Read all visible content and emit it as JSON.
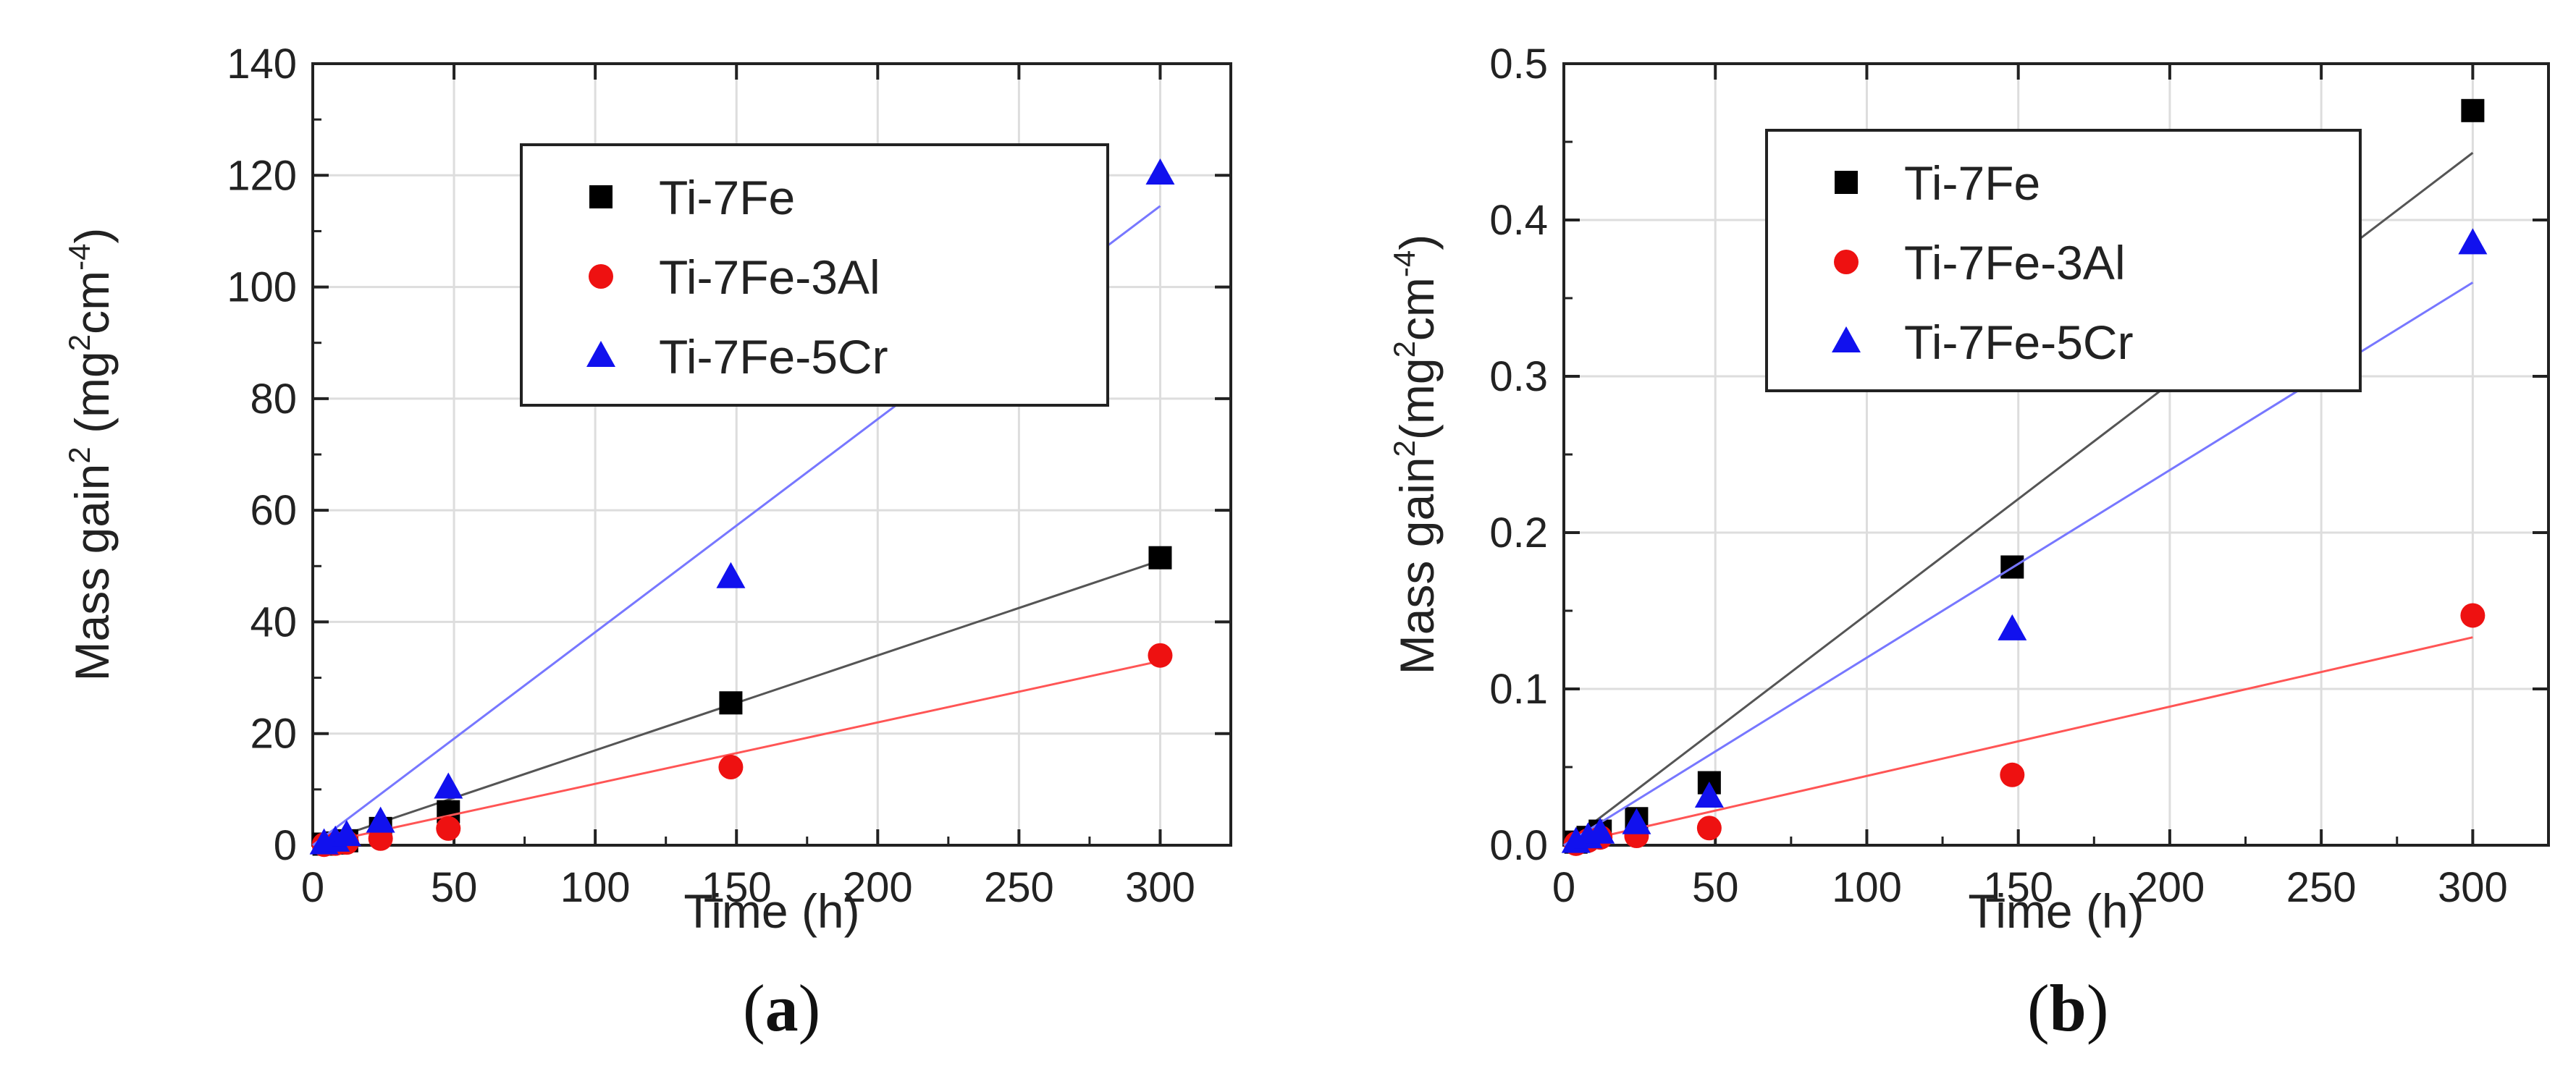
{
  "chart_data": [
    {
      "type": "scatter",
      "panel": "a",
      "title": "",
      "xlabel": "Time (h)",
      "ylabel": {
        "pre": "Mass gain",
        "sup1": "2",
        "mid": " (mg",
        "sup2": "2",
        "post": "cm",
        "sup3": "-4",
        "end": ")"
      },
      "xlim": [
        0,
        325
      ],
      "ylim": [
        0,
        140
      ],
      "xticks": [
        0,
        50,
        100,
        150,
        200,
        250,
        300
      ],
      "yticks": [
        0,
        20,
        40,
        60,
        80,
        100,
        120,
        140
      ],
      "grid": true,
      "legend_position": "top-left",
      "series": [
        {
          "name": "Ti-7Fe",
          "marker": "square",
          "color": "#000000",
          "fit_color": "#555555",
          "x": [
            4,
            8,
            12,
            24,
            48,
            148,
            300
          ],
          "y": [
            0.2,
            0.4,
            0.8,
            3.0,
            6.0,
            25.5,
            51.5
          ],
          "fit": {
            "x": [
              0,
              300
            ],
            "y": [
              0,
              51
            ]
          }
        },
        {
          "name": "Ti-7Fe-3Al",
          "marker": "circle",
          "color": "#ee1111",
          "fit_color": "#ff5555",
          "x": [
            4,
            8,
            12,
            24,
            48,
            148,
            300
          ],
          "y": [
            0.1,
            0.3,
            0.5,
            1.2,
            3.0,
            14.0,
            34.0
          ],
          "fit": {
            "x": [
              0,
              300
            ],
            "y": [
              0,
              33
            ]
          }
        },
        {
          "name": "Ti-7Fe-5Cr",
          "marker": "triangle",
          "color": "#1111ee",
          "fit_color": "#7777ff",
          "x": [
            4,
            8,
            12,
            24,
            48,
            148,
            300
          ],
          "y": [
            0.3,
            0.8,
            1.8,
            4.2,
            10.3,
            48.0,
            120.3
          ],
          "fit": {
            "x": [
              0,
              300
            ],
            "y": [
              0,
              114.5
            ]
          }
        }
      ]
    },
    {
      "type": "scatter",
      "panel": "b",
      "title": "",
      "xlabel": "Time (h)",
      "ylabel": {
        "pre": "Mass gain",
        "sup1": "2",
        "mid": "(mg",
        "sup2": "2",
        "post": "cm",
        "sup3": "-4",
        "end": ")"
      },
      "xlim": [
        0,
        325
      ],
      "ylim": [
        0,
        0.5
      ],
      "xticks": [
        0,
        50,
        100,
        150,
        200,
        250,
        300
      ],
      "yticks": [
        0.0,
        0.1,
        0.2,
        0.3,
        0.4,
        0.5
      ],
      "grid": true,
      "legend_position": "top-left",
      "series": [
        {
          "name": "Ti-7Fe",
          "marker": "square",
          "color": "#000000",
          "fit_color": "#555555",
          "x": [
            4,
            8,
            12,
            24,
            48,
            148,
            300
          ],
          "y": [
            0.002,
            0.005,
            0.009,
            0.017,
            0.04,
            0.178,
            0.47
          ],
          "fit": {
            "x": [
              0,
              300
            ],
            "y": [
              0,
              0.443
            ]
          }
        },
        {
          "name": "Ti-7Fe-3Al",
          "marker": "circle",
          "color": "#ee1111",
          "fit_color": "#ff5555",
          "x": [
            4,
            8,
            12,
            24,
            48,
            148,
            300
          ],
          "y": [
            0.001,
            0.003,
            0.005,
            0.006,
            0.011,
            0.045,
            0.147
          ],
          "fit": {
            "x": [
              0,
              300
            ],
            "y": [
              0,
              0.133
            ]
          }
        },
        {
          "name": "Ti-7Fe-5Cr",
          "marker": "triangle",
          "color": "#1111ee",
          "fit_color": "#7777ff",
          "x": [
            4,
            8,
            12,
            24,
            48,
            148,
            300
          ],
          "y": [
            0.002,
            0.005,
            0.008,
            0.014,
            0.031,
            0.138,
            0.385
          ],
          "fit": {
            "x": [
              0,
              300
            ],
            "y": [
              0,
              0.36
            ]
          }
        }
      ]
    }
  ],
  "panels": [
    {
      "label_open": "(",
      "label": "a",
      "label_close": ")"
    },
    {
      "label_open": "(",
      "label": "b",
      "label_close": ")"
    }
  ]
}
